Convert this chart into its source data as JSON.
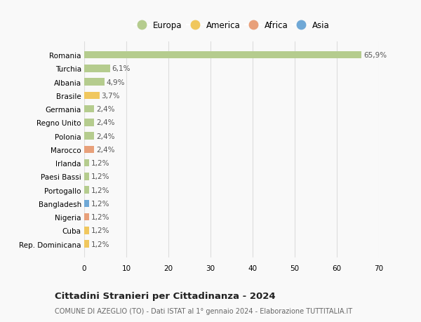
{
  "countries": [
    "Romania",
    "Turchia",
    "Albania",
    "Brasile",
    "Germania",
    "Regno Unito",
    "Polonia",
    "Marocco",
    "Irlanda",
    "Paesi Bassi",
    "Portogallo",
    "Bangladesh",
    "Nigeria",
    "Cuba",
    "Rep. Dominicana"
  ],
  "values": [
    65.9,
    6.1,
    4.9,
    3.7,
    2.4,
    2.4,
    2.4,
    2.4,
    1.2,
    1.2,
    1.2,
    1.2,
    1.2,
    1.2,
    1.2
  ],
  "labels": [
    "65,9%",
    "6,1%",
    "4,9%",
    "3,7%",
    "2,4%",
    "2,4%",
    "2,4%",
    "2,4%",
    "1,2%",
    "1,2%",
    "1,2%",
    "1,2%",
    "1,2%",
    "1,2%",
    "1,2%"
  ],
  "continents": [
    "Europa",
    "Europa",
    "Europa",
    "America",
    "Europa",
    "Europa",
    "Europa",
    "Africa",
    "Europa",
    "Europa",
    "Europa",
    "Asia",
    "Africa",
    "America",
    "America"
  ],
  "colors": {
    "Europa": "#b5cc8e",
    "America": "#f0c75e",
    "Africa": "#e8a07a",
    "Asia": "#6fa8d6"
  },
  "xlim": [
    0,
    70
  ],
  "xticks": [
    0,
    10,
    20,
    30,
    40,
    50,
    60,
    70
  ],
  "title": "Cittadini Stranieri per Cittadinanza - 2024",
  "subtitle": "COMUNE DI AZEGLIO (TO) - Dati ISTAT al 1° gennaio 2024 - Elaborazione TUTTITALIA.IT",
  "background_color": "#f9f9f9",
  "grid_color": "#dddddd",
  "legend_order": [
    "Europa",
    "America",
    "Africa",
    "Asia"
  ]
}
